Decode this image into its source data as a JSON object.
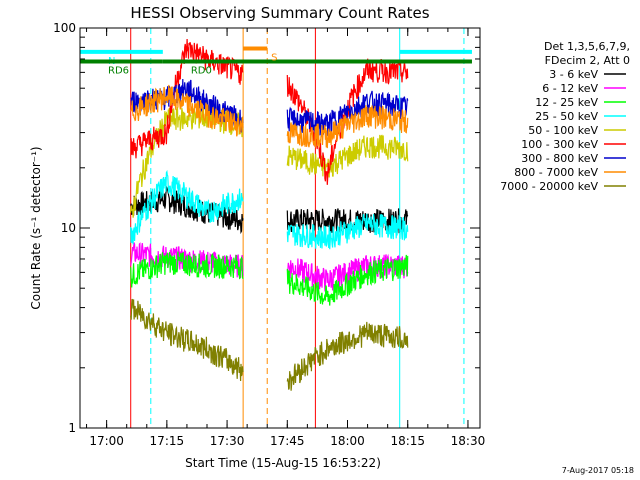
{
  "chart_data": {
    "type": "line",
    "title": "HESSI Observing Summary Count Rates",
    "xlabel": "Start Time (15-Aug-15 16:53:22)",
    "ylabel": "Count Rate (s⁻¹ detector⁻¹)",
    "y_scale": "log",
    "ylim": [
      1,
      100
    ],
    "xlim": [
      "16:53:22",
      "18:33:00"
    ],
    "x_ticks": [
      "17:00",
      "17:15",
      "17:30",
      "17:45",
      "18:00",
      "18:15",
      "18:30"
    ],
    "y_ticks": [
      "1",
      "10",
      "100"
    ],
    "legend": {
      "header_1": "Det 1,3,5,6,7,9,",
      "header_2": "FDecim 2, Att 0",
      "position": "right"
    },
    "timestamp": "7-Aug-2017 05:18",
    "state_bars": [
      {
        "label": "N",
        "color": "#00ffff",
        "start": "16:53",
        "end": "17:14",
        "level": 76
      },
      {
        "label": "RD0",
        "color": "#008000",
        "start": "17:14",
        "end": "18:31",
        "level": 68
      },
      {
        "label": "RD6",
        "color": "#008000",
        "start": "16:53",
        "end": "17:14",
        "level": 68
      },
      {
        "label": "S",
        "color": "#ff8c00",
        "start": "17:34",
        "end": "17:40",
        "level": 79
      },
      {
        "label": "",
        "color": "#00ffff",
        "start": "18:13",
        "end": "18:31",
        "level": 76
      }
    ],
    "markers": [
      {
        "time": "17:06",
        "color": "#ff0000",
        "style": "solid"
      },
      {
        "time": "17:11",
        "color": "#00ffff",
        "style": "dashed"
      },
      {
        "time": "17:34",
        "color": "#ff8c00",
        "style": "solid"
      },
      {
        "time": "17:40",
        "color": "#ff8c00",
        "style": "dashed"
      },
      {
        "time": "17:52",
        "color": "#ff0000",
        "style": "solid"
      },
      {
        "time": "18:13",
        "color": "#00ffff",
        "style": "solid"
      },
      {
        "time": "18:29",
        "color": "#00ffff",
        "style": "dashed"
      }
    ],
    "segments": [
      {
        "start": "17:06",
        "end": "17:34"
      },
      {
        "start": "17:45",
        "end": "18:16"
      }
    ],
    "series": [
      {
        "name": "3 - 6 keV",
        "color": "#000000",
        "values": [
          13,
          11,
          11,
          11
        ],
        "points": [
          [
            "17:06",
            13
          ],
          [
            "17:15",
            14
          ],
          [
            "17:25",
            12
          ],
          [
            "17:33",
            11
          ],
          [
            "17:45",
            11
          ],
          [
            "17:55",
            11
          ],
          [
            "18:05",
            11
          ],
          [
            "18:15",
            11
          ]
        ]
      },
      {
        "name": "6 - 12 keV",
        "color": "#ff00ff",
        "points": [
          [
            "17:06",
            7.5
          ],
          [
            "17:15",
            7.2
          ],
          [
            "17:25",
            6.8
          ],
          [
            "17:33",
            6.5
          ],
          [
            "17:45",
            6.5
          ],
          [
            "17:55",
            5.5
          ],
          [
            "18:05",
            6.5
          ],
          [
            "18:15",
            6.5
          ]
        ]
      },
      {
        "name": "12 - 25 keV",
        "color": "#00ff00",
        "points": [
          [
            "17:06",
            5.8
          ],
          [
            "17:15",
            6.8
          ],
          [
            "17:25",
            6.5
          ],
          [
            "17:33",
            6.5
          ],
          [
            "17:45",
            5.5
          ],
          [
            "17:55",
            4.5
          ],
          [
            "18:05",
            6
          ],
          [
            "18:15",
            6.5
          ]
        ]
      },
      {
        "name": "25 - 50 keV",
        "color": "#00ffff",
        "points": [
          [
            "17:06",
            9
          ],
          [
            "17:15",
            17
          ],
          [
            "17:25",
            12
          ],
          [
            "17:33",
            14
          ],
          [
            "17:45",
            9.5
          ],
          [
            "17:55",
            9
          ],
          [
            "18:05",
            10.5
          ],
          [
            "18:15",
            10
          ]
        ]
      },
      {
        "name": "50 - 100 keV",
        "color": "#cccc00",
        "points": [
          [
            "17:06",
            11
          ],
          [
            "17:15",
            35
          ],
          [
            "17:25",
            36
          ],
          [
            "17:33",
            33
          ],
          [
            "17:45",
            23
          ],
          [
            "17:55",
            20
          ],
          [
            "18:05",
            26
          ],
          [
            "18:15",
            25
          ]
        ]
      },
      {
        "name": "100 - 300 keV",
        "color": "#ff0000",
        "points": [
          [
            "17:06",
            25
          ],
          [
            "17:15",
            30
          ],
          [
            "17:20",
            80
          ],
          [
            "17:25",
            70
          ],
          [
            "17:33",
            60
          ],
          [
            "17:45",
            53
          ],
          [
            "17:55",
            18
          ],
          [
            "18:05",
            62
          ],
          [
            "18:15",
            60
          ]
        ]
      },
      {
        "name": "300 - 800 keV",
        "color": "#0000cc",
        "points": [
          [
            "17:06",
            43
          ],
          [
            "17:15",
            45
          ],
          [
            "17:20",
            50
          ],
          [
            "17:25",
            42
          ],
          [
            "17:33",
            35
          ],
          [
            "17:45",
            35
          ],
          [
            "17:55",
            33
          ],
          [
            "18:05",
            43
          ],
          [
            "18:15",
            40
          ]
        ]
      },
      {
        "name": "800 - 7000 keV",
        "color": "#ff8c00",
        "points": [
          [
            "17:06",
            38
          ],
          [
            "17:15",
            46
          ],
          [
            "17:25",
            37
          ],
          [
            "17:33",
            33
          ],
          [
            "17:45",
            30
          ],
          [
            "17:55",
            29
          ],
          [
            "18:05",
            37
          ],
          [
            "18:15",
            34
          ]
        ]
      },
      {
        "name": "7000 - 20000 keV",
        "color": "#808000",
        "points": [
          [
            "17:06",
            4
          ],
          [
            "17:15",
            3
          ],
          [
            "17:25",
            2.5
          ],
          [
            "17:33",
            2
          ],
          [
            "17:45",
            1.7
          ],
          [
            "17:55",
            2.5
          ],
          [
            "18:05",
            3
          ],
          [
            "18:15",
            2.8
          ]
        ]
      }
    ]
  }
}
